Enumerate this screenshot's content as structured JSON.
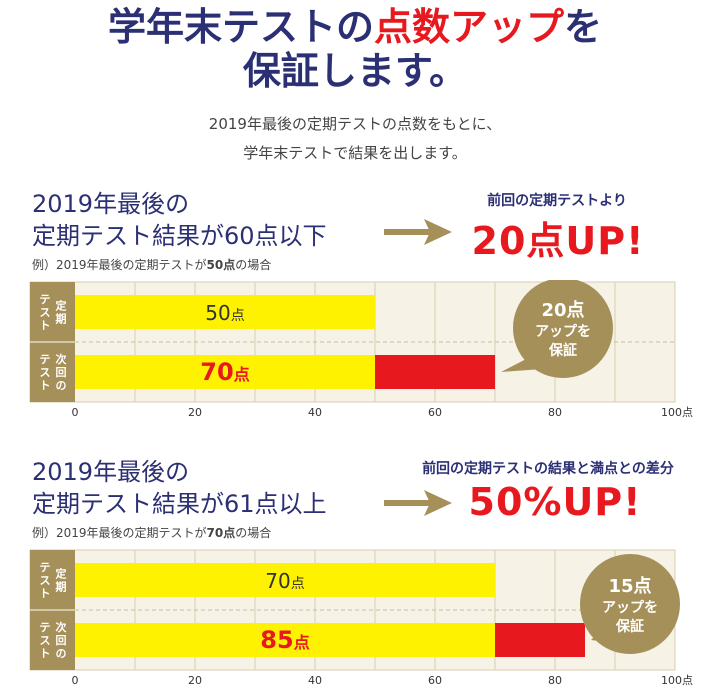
{
  "header": {
    "line1_prefix": "学年末テストの",
    "line1_accent": "点数アップ",
    "line1_suffix": "を",
    "line2": "保証します。"
  },
  "lead": {
    "line1": "2019年最後の定期テストの点数をもとに、",
    "line2": "学年末テストで結果を出します。"
  },
  "colors": {
    "navy": "#2b2f74",
    "red": "#e8191e",
    "yellow": "#fff200",
    "gold": "#a6905a",
    "panel": "#f6f2e6",
    "grid": "#d8ceb0"
  },
  "sections": [
    {
      "title_line1": "2019年最後の",
      "title_line2": "定期テスト結果が60点以下",
      "example_prefix": "例）2019年最後の定期テストが",
      "example_bold": "50点",
      "example_suffix": "の場合",
      "up_caption": "前回の定期テストより",
      "up_value": "20点UP!"
    },
    {
      "title_line1": "2019年最後の",
      "title_line2": "定期テスト結果が61点以上",
      "example_prefix": "例）2019年最後の定期テストが",
      "example_bold": "70点",
      "example_suffix": "の場合",
      "up_caption": "前回の定期テストの結果と満点との差分",
      "up_value": "50%UP!"
    }
  ],
  "chart_data": [
    {
      "type": "bar",
      "orientation": "horizontal",
      "categories": [
        "定期テスト",
        "次回のテスト"
      ],
      "series": [
        {
          "values": [
            50,
            50
          ]
        },
        {
          "values": [
            0,
            20
          ]
        }
      ],
      "value_labels": [
        {
          "number": "50",
          "unit": "点"
        },
        {
          "number": "70",
          "unit": "点"
        }
      ],
      "xlim": [
        0,
        100
      ],
      "xticks": [
        "0",
        "20",
        "40",
        "60",
        "80",
        "100点"
      ],
      "badge": {
        "value": "20点",
        "line1": "アップを",
        "line2": "保証"
      },
      "grid": true
    },
    {
      "type": "bar",
      "orientation": "horizontal",
      "categories": [
        "定期テスト",
        "次回のテスト"
      ],
      "series": [
        {
          "values": [
            70,
            70
          ]
        },
        {
          "values": [
            0,
            15
          ]
        }
      ],
      "value_labels": [
        {
          "number": "70",
          "unit": "点"
        },
        {
          "number": "85",
          "unit": "点"
        }
      ],
      "xlim": [
        0,
        100
      ],
      "xticks": [
        "0",
        "20",
        "40",
        "60",
        "80",
        "100点"
      ],
      "badge": {
        "value": "15点",
        "line1": "アップを",
        "line2": "保証"
      },
      "grid": true
    }
  ]
}
